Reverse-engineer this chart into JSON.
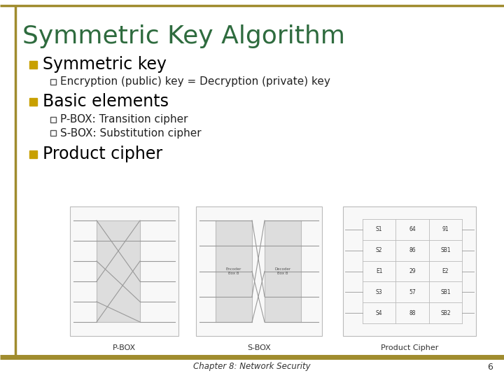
{
  "title": "Symmetric Key Algorithm",
  "title_color": "#2E6B3E",
  "background_color": "#FFFFFF",
  "border_color": "#A08C2E",
  "bullet_color": "#C8A000",
  "bullet1": "Symmetric key",
  "sub1": "Encryption (public) key = Decryption (private) key",
  "bullet2": "Basic elements",
  "sub2a": "P-BOX: Transition cipher",
  "sub2b": "S-BOX: Substitution cipher",
  "bullet3": "Product cipher",
  "footer_text": "Chapter 8: Network Security",
  "footer_page": "6",
  "text_color": "#000000",
  "sub_text_color": "#222222",
  "diagram_border_color": "#BBBBBB",
  "diagram_fill_color": "#F8F8F8",
  "inner_fill_color": "#EEEEEE",
  "line_color": "#999999"
}
